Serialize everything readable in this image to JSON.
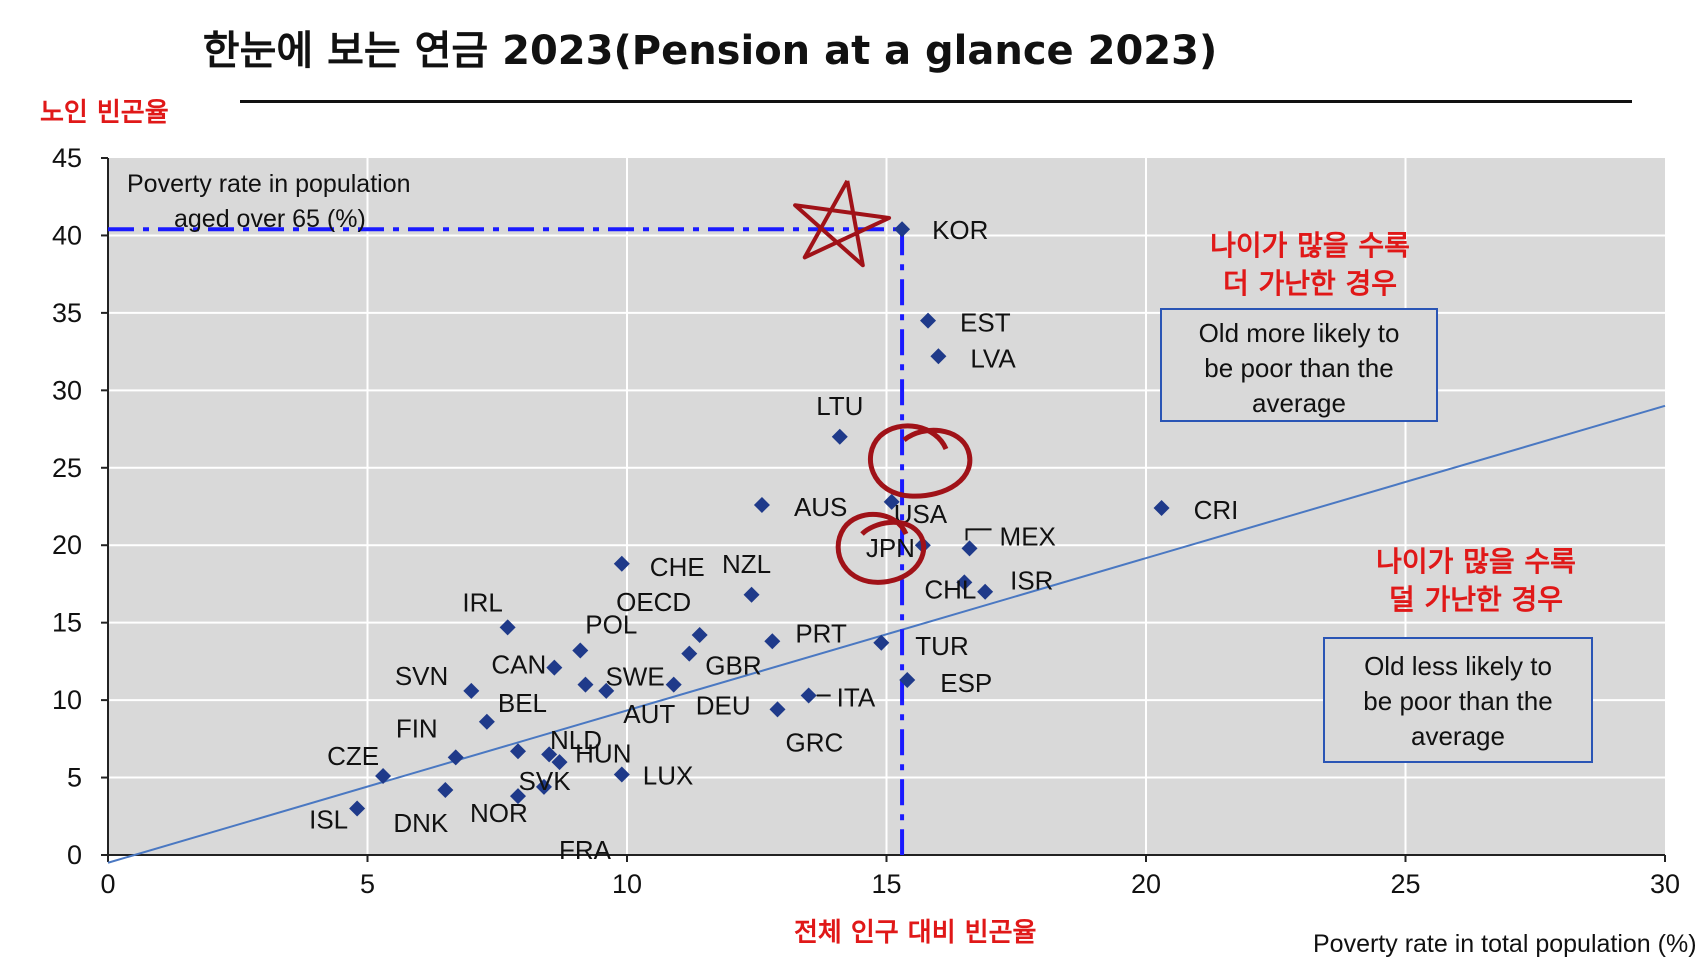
{
  "title": "한눈에 보는 연금 2023(Pension at a glance 2023)",
  "annotations": {
    "ylabel_kr": "노인 빈곤율",
    "xlabel_kr": "전체 인구 대비 빈곤율",
    "old_more_kr": [
      "나이가 많을 수록",
      "더 가난한 경우"
    ],
    "old_less_kr": [
      "나이가 많을 수록",
      "덜 가난한 경우"
    ],
    "old_more_box": [
      "Old more likely to",
      "be poor than the",
      "average"
    ],
    "old_less_box": [
      "Old less likely to",
      "be poor than the",
      "average"
    ]
  },
  "colors": {
    "marker": "#1f3a8a",
    "plot_bg": "#d9d9d9",
    "parity_line": "#4a78c2",
    "highlight_dash": "#1a1aff",
    "korean_text": "#e01818",
    "hand_drawn": "#a01218"
  },
  "chart_data": {
    "type": "scatter",
    "title": "한눈에 보는 연금 2023(Pension at a glance 2023)",
    "ylabel": "Poverty rate in population aged over 65 (%)",
    "ylabel_lines": [
      "Poverty rate in population",
      "aged over 65 (%)"
    ],
    "xlabel": "Poverty rate in total population (%)",
    "xlim": [
      0,
      30
    ],
    "ylim": [
      0,
      45
    ],
    "xticks": [
      0,
      5,
      10,
      15,
      20,
      25,
      30
    ],
    "yticks": [
      0,
      5,
      10,
      15,
      20,
      25,
      30,
      35,
      40,
      45
    ],
    "grid": true,
    "reference_line": {
      "description": "fitted line",
      "points": [
        [
          0,
          -0.5
        ],
        [
          30,
          29.0
        ]
      ]
    },
    "highlight": {
      "label": "KOR",
      "x": 15.3,
      "y": 40.4
    },
    "points": [
      {
        "label": "KOR",
        "x": 15.3,
        "y": 40.4
      },
      {
        "label": "EST",
        "x": 15.8,
        "y": 34.5
      },
      {
        "label": "LVA",
        "x": 16.0,
        "y": 32.2
      },
      {
        "label": "LTU",
        "x": 14.1,
        "y": 27.0
      },
      {
        "label": "USA",
        "x": 15.1,
        "y": 22.8
      },
      {
        "label": "AUS",
        "x": 12.6,
        "y": 22.6
      },
      {
        "label": "CRI",
        "x": 20.3,
        "y": 22.4
      },
      {
        "label": "JPN",
        "x": 15.7,
        "y": 20.0
      },
      {
        "label": "MEX",
        "x": 16.6,
        "y": 19.8
      },
      {
        "label": "CHE",
        "x": 9.9,
        "y": 18.8
      },
      {
        "label": "CHL",
        "x": 16.5,
        "y": 17.6
      },
      {
        "label": "ISR",
        "x": 16.9,
        "y": 17.0
      },
      {
        "label": "NZL",
        "x": 12.4,
        "y": 16.8
      },
      {
        "label": "IRL",
        "x": 7.7,
        "y": 14.7
      },
      {
        "label": "OECD",
        "x": 11.4,
        "y": 14.2
      },
      {
        "label": "PRT",
        "x": 12.8,
        "y": 13.8
      },
      {
        "label": "TUR",
        "x": 14.9,
        "y": 13.7
      },
      {
        "label": "POL",
        "x": 9.1,
        "y": 13.2
      },
      {
        "label": "GBR",
        "x": 11.2,
        "y": 13.0
      },
      {
        "label": "CAN",
        "x": 8.6,
        "y": 12.1
      },
      {
        "label": "ESP",
        "x": 15.4,
        "y": 11.3
      },
      {
        "label": "DEU",
        "x": 10.9,
        "y": 11.0
      },
      {
        "label": "SWE",
        "x": 9.2,
        "y": 11.0
      },
      {
        "label": "AUT",
        "x": 9.6,
        "y": 10.6
      },
      {
        "label": "SVN",
        "x": 7.0,
        "y": 10.6
      },
      {
        "label": "ITA",
        "x": 13.5,
        "y": 10.3
      },
      {
        "label": "GRC",
        "x": 12.9,
        "y": 9.4
      },
      {
        "label": "BEL",
        "x": 7.3,
        "y": 8.6
      },
      {
        "label": "NLD",
        "x": 7.9,
        "y": 6.7
      },
      {
        "label": "HUN",
        "x": 8.5,
        "y": 6.5
      },
      {
        "label": "FIN",
        "x": 6.7,
        "y": 6.3
      },
      {
        "label": "SVK",
        "x": 8.7,
        "y": 6.0
      },
      {
        "label": "CZE",
        "x": 5.3,
        "y": 5.1
      },
      {
        "label": "LUX",
        "x": 9.9,
        "y": 5.2
      },
      {
        "label": "FRA",
        "x": 8.4,
        "y": 4.4
      },
      {
        "label": "DNK",
        "x": 6.5,
        "y": 4.2
      },
      {
        "label": "NOR",
        "x": 7.9,
        "y": 3.8
      },
      {
        "label": "ISL",
        "x": 4.8,
        "y": 3.0
      }
    ]
  }
}
